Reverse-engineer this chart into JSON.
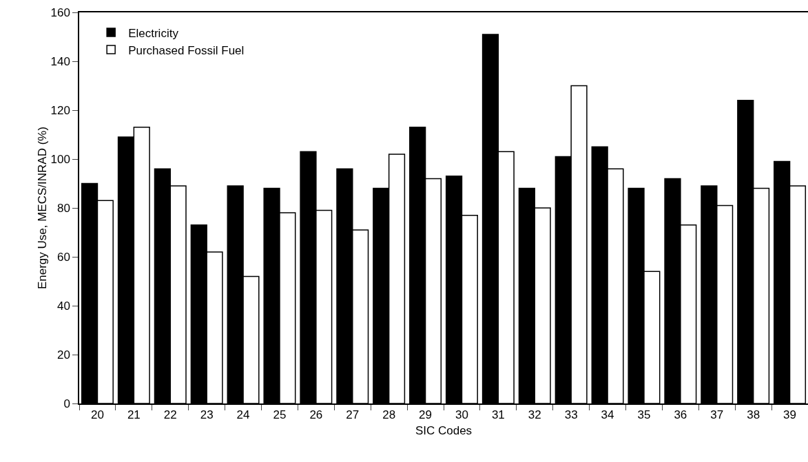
{
  "chart_data": {
    "type": "bar",
    "xlabel": "SIC Codes",
    "ylabel": "Energy Use, MECS/INRAD (%)",
    "categories": [
      "20",
      "21",
      "22",
      "23",
      "24",
      "25",
      "26",
      "27",
      "28",
      "29",
      "30",
      "31",
      "32",
      "33",
      "34",
      "35",
      "36",
      "37",
      "38",
      "39"
    ],
    "series": [
      {
        "name": "Electricity",
        "color": "#000000",
        "values": [
          90,
          109,
          96,
          73,
          89,
          88,
          103,
          96,
          88,
          113,
          93,
          151,
          88,
          101,
          105,
          88,
          92,
          89,
          124,
          99
        ]
      },
      {
        "name": "Purchased Fossil Fuel",
        "color": "#ffffff",
        "values": [
          83,
          113,
          89,
          62,
          52,
          78,
          79,
          71,
          102,
          92,
          77,
          103,
          80,
          130,
          96,
          54,
          73,
          81,
          88,
          89
        ]
      }
    ],
    "ylim": [
      0,
      160
    ],
    "yticks": [
      0,
      20,
      40,
      60,
      80,
      100,
      120,
      140,
      160
    ],
    "grid": false,
    "legend": "top left"
  }
}
